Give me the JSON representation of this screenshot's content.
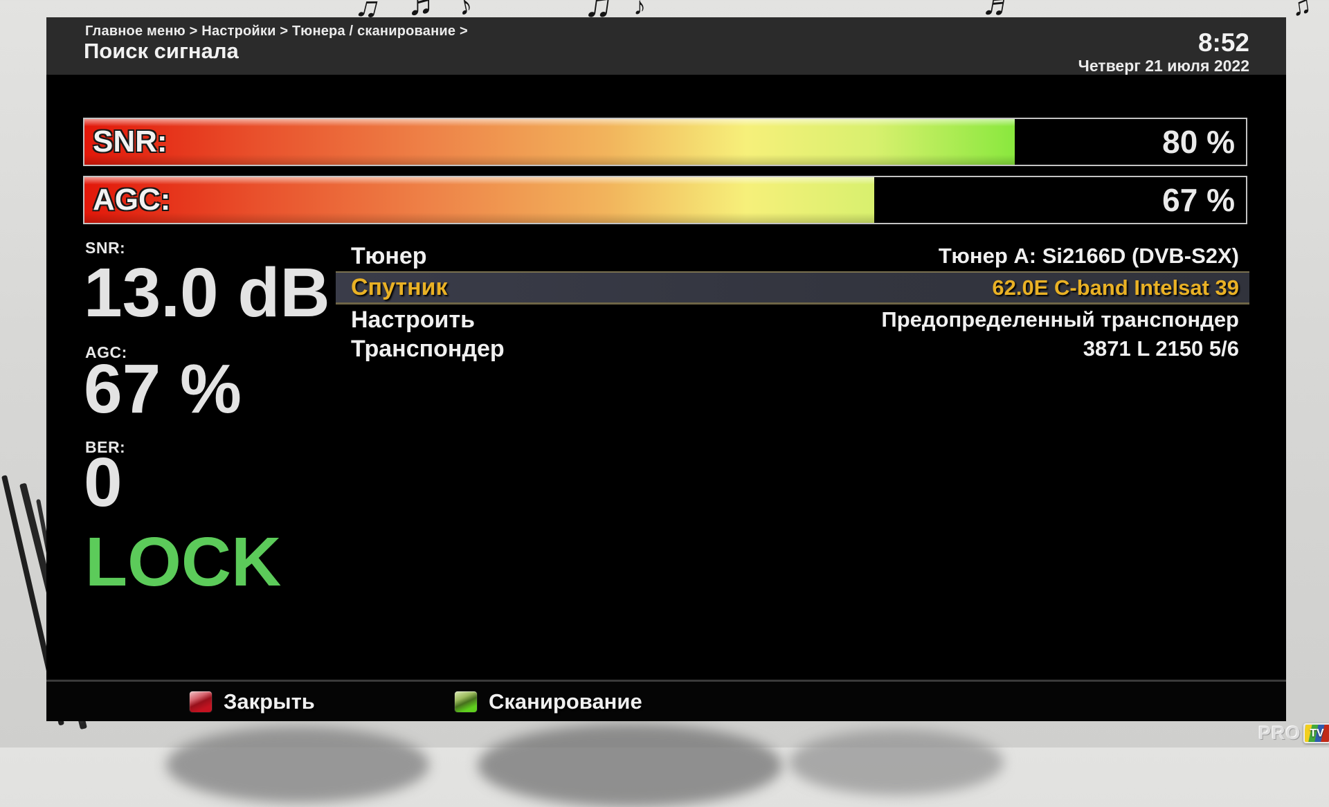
{
  "header": {
    "breadcrumb": "Главное меню > Настройки > Тюнера / сканирование >",
    "title": "Поиск сигнала",
    "time": "8:52",
    "date": "Четверг 21 июля 2022"
  },
  "signal_bars": [
    {
      "label": "SNR:",
      "value": "80 %",
      "percent": 80,
      "fill_percent": 80.1
    },
    {
      "label": "AGC:",
      "value": "67 %",
      "percent": 67,
      "fill_percent": 68
    }
  ],
  "stats": [
    {
      "label": "SNR:",
      "value": "13.0 dB"
    },
    {
      "label": "AGC:",
      "value": "67 %"
    },
    {
      "label": "BER:",
      "value": "0"
    }
  ],
  "lock_status": "LOCK",
  "menu": {
    "rows": [
      {
        "label": "Тюнер",
        "value": "Тюнер A: Si2166D (DVB-S2X)",
        "selected": false
      },
      {
        "label": "Спутник",
        "value": "62.0E C-band Intelsat 39",
        "selected": true
      },
      {
        "label": "Настроить",
        "value": "Предопределенный транспондер",
        "selected": false
      },
      {
        "label": "Транспондер",
        "value": "3871 L 2150 5/6",
        "selected": false
      }
    ]
  },
  "footer": {
    "buttons": [
      {
        "label": "Закрыть",
        "color": "#c41220",
        "dark": "#98101b",
        "mid": "#d5626c",
        "shine": "#f2c5c9"
      },
      {
        "label": "Сканирование",
        "color": "#5fcf1d",
        "dark": "#46701d",
        "mid": "#9cbb5e",
        "shine": "#dcebb4"
      }
    ]
  },
  "watermark": {
    "pro": "PRO",
    "tv": "TV"
  },
  "colors": {
    "accent_gold": "#e9b125",
    "lock_green": "#5ccb5a",
    "header_bg": "#2b2b2b",
    "panel_bg": "#000000",
    "highlight_bg": "#33353f",
    "highlight_border": "#7a7150"
  }
}
